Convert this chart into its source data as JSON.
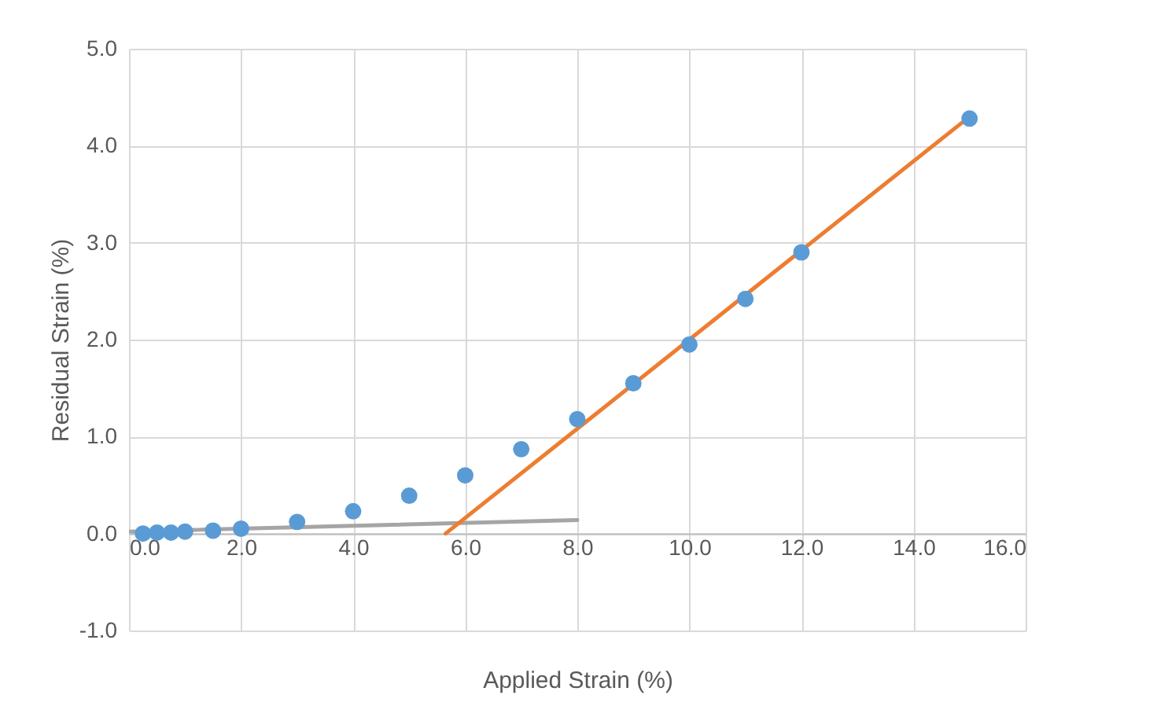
{
  "chart_data": {
    "type": "scatter",
    "xlabel": "Applied Strain (%)",
    "ylabel": "Residual Strain (%)",
    "xlim": [
      0,
      16
    ],
    "ylim": [
      -1,
      5
    ],
    "xticks": [
      {
        "value": 0,
        "label": "0.0"
      },
      {
        "value": 2,
        "label": "2.0"
      },
      {
        "value": 4,
        "label": "4.0"
      },
      {
        "value": 6,
        "label": "6.0"
      },
      {
        "value": 8,
        "label": "8.0"
      },
      {
        "value": 10,
        "label": "10.0"
      },
      {
        "value": 12,
        "label": "12.0"
      },
      {
        "value": 14,
        "label": "14.0"
      },
      {
        "value": 16,
        "label": "16.0"
      }
    ],
    "yticks": [
      {
        "value": -1,
        "label": "-1.0"
      },
      {
        "value": 0,
        "label": "0.0"
      },
      {
        "value": 1,
        "label": "1.0"
      },
      {
        "value": 2,
        "label": "2.0"
      },
      {
        "value": 3,
        "label": "3.0"
      },
      {
        "value": 4,
        "label": "4.0"
      },
      {
        "value": 5,
        "label": "5.0"
      }
    ],
    "grid": true,
    "series": [
      {
        "type": "line",
        "color": "#a5a5a5",
        "x": [
          0,
          8
        ],
        "values": [
          0.02,
          0.14
        ]
      },
      {
        "type": "line",
        "color": "#ed7d31",
        "x": [
          5.65,
          15
        ],
        "values": [
          0,
          4.3
        ]
      },
      {
        "marker": "circle",
        "color": "#5b9bd5",
        "x": [
          0.25,
          0.5,
          0.75,
          1,
          1.5,
          2,
          3,
          4,
          5,
          6,
          7,
          8,
          9,
          10,
          11,
          12,
          15
        ],
        "values": [
          0,
          0.01,
          0.01,
          0.02,
          0.03,
          0.05,
          0.12,
          0.23,
          0.39,
          0.6,
          0.87,
          1.18,
          1.55,
          1.95,
          2.42,
          2.9,
          4.28
        ]
      }
    ]
  }
}
